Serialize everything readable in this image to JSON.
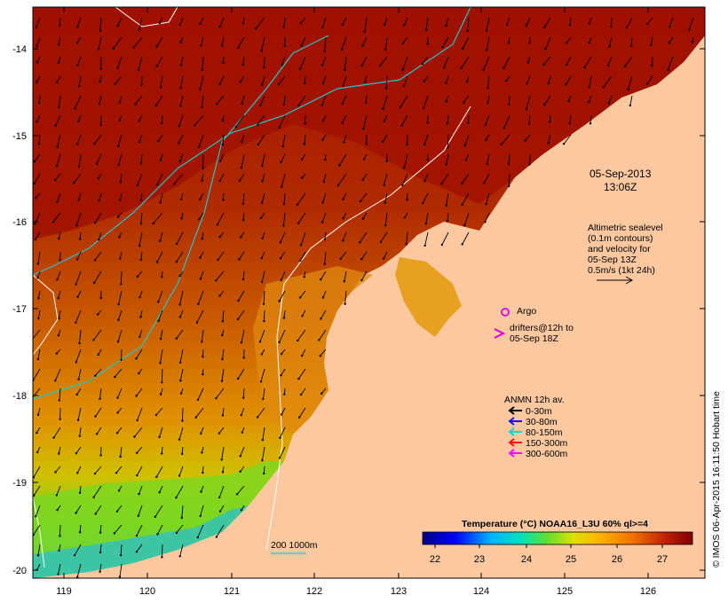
{
  "map": {
    "date": "05-Sep-2013",
    "time": "13:06Z",
    "altimetry_text": [
      "Altimetric sealevel",
      "(0.1m contours)",
      "and velocity for",
      "05-Sep 13Z",
      "0.5m/s (1kt 24h)"
    ],
    "argo_label": "Argo",
    "drifters_text": [
      "drifters@12h to",
      "05-Sep 18Z"
    ],
    "anmn_title": "ANMN 12h av.",
    "anmn_legend": [
      {
        "label": "0-30m",
        "color": "#000000"
      },
      {
        "label": "30-80m",
        "color": "#1010ff"
      },
      {
        "label": "80-150m",
        "color": "#00d8d8"
      },
      {
        "label": "150-300m",
        "color": "#ff1010"
      },
      {
        "label": "300-600m",
        "color": "#ff00ff"
      }
    ],
    "isobath_label": "200  1000m",
    "colorbar_title": "Temperature (°C) NOAA16_L3U 60% ql>=4",
    "colorbar_ticks": [
      "22",
      "23",
      "24",
      "25",
      "26",
      "27"
    ],
    "credit": "© IMOS 06-Apr-2015 16:11:50 Hobart time",
    "lon_ticks": [
      "119",
      "120",
      "121",
      "122",
      "123",
      "124",
      "125",
      "126"
    ],
    "lat_ticks": [
      "-14",
      "-15",
      "-16",
      "-17",
      "-18",
      "-19",
      "-20"
    ],
    "colors": {
      "land": "#fbc8a0",
      "warm": "#a01000",
      "cool_green": "#7cd820",
      "cyan": "#20c8d8"
    }
  }
}
